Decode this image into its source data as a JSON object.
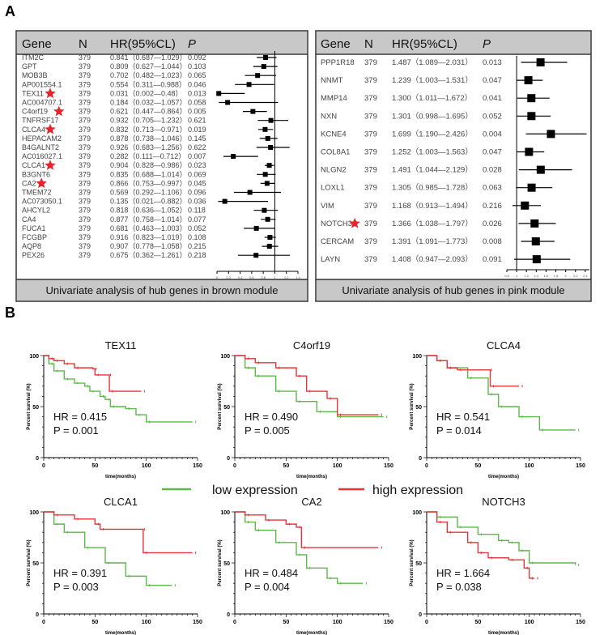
{
  "panel_labels": {
    "a": "A",
    "b": "B"
  },
  "chart_data": [
    {
      "type": "forest",
      "title": "Univariate analysis of hub genes in brown module",
      "headers": [
        "Gene",
        "N",
        "HR(95%CL)",
        "P"
      ],
      "xlim": [
        0,
        1.4
      ],
      "xticks": [
        0,
        0.2,
        0.4,
        0.6,
        0.8,
        1,
        1.2,
        1.4
      ],
      "reference": 1,
      "rows": [
        {
          "gene": "ITM2C",
          "n": "379",
          "hr": 0.841,
          "lo": 0.687,
          "hi": 1.029,
          "ci": "0.841（0.687—1.029）",
          "p": "0.092",
          "star": false
        },
        {
          "gene": "GPT",
          "n": "379",
          "hr": 0.809,
          "lo": 0.627,
          "hi": 1.044,
          "ci": "0.809（0.627—1.044）",
          "p": "0.103",
          "star": false
        },
        {
          "gene": "MOB3B",
          "n": "379",
          "hr": 0.702,
          "lo": 0.482,
          "hi": 1.023,
          "ci": "0.702（0.482—1.023）",
          "p": "0.065",
          "star": false
        },
        {
          "gene": "AP001554.1",
          "n": "379",
          "hr": 0.554,
          "lo": 0.311,
          "hi": 0.988,
          "ci": "0.554（0.311—0.988）",
          "p": "0.046",
          "star": false
        },
        {
          "gene": "TEX11",
          "n": "379",
          "hr": 0.031,
          "lo": 0.002,
          "hi": 0.48,
          "ci": "0.031（0.002—0.48）",
          "p": "0.013",
          "star": true
        },
        {
          "gene": "AC004707.1",
          "n": "379",
          "hr": 0.184,
          "lo": 0.032,
          "hi": 1.057,
          "ci": "0.184（0.032—1.057）",
          "p": "0.058",
          "star": false
        },
        {
          "gene": "C4orf19",
          "n": "379",
          "hr": 0.621,
          "lo": 0.447,
          "hi": 0.864,
          "ci": "0.621（0.447—0.864）",
          "p": "0.005",
          "star": true
        },
        {
          "gene": "TNFRSF17",
          "n": "379",
          "hr": 0.932,
          "lo": 0.705,
          "hi": 1.232,
          "ci": "0.932（0.705—1.232）",
          "p": "0.621",
          "star": false
        },
        {
          "gene": "CLCA4",
          "n": "379",
          "hr": 0.832,
          "lo": 0.713,
          "hi": 0.971,
          "ci": "0.832（0.713—0.971）",
          "p": "0.019",
          "star": true
        },
        {
          "gene": "HEPACAM2",
          "n": "379",
          "hr": 0.878,
          "lo": 0.738,
          "hi": 1.046,
          "ci": "0.878（0.738—1.046）",
          "p": "0.145",
          "star": false
        },
        {
          "gene": "B4GALNT2",
          "n": "379",
          "hr": 0.926,
          "lo": 0.683,
          "hi": 1.256,
          "ci": "0.926（0.683—1.256）",
          "p": "0.622",
          "star": false
        },
        {
          "gene": "AC016027.1",
          "n": "379",
          "hr": 0.282,
          "lo": 0.111,
          "hi": 0.712,
          "ci": "0.282（0.111—0.712）",
          "p": "0.007",
          "star": false
        },
        {
          "gene": "CLCA1",
          "n": "379",
          "hr": 0.904,
          "lo": 0.828,
          "hi": 0.986,
          "ci": "0.904（0.828—0.986）",
          "p": "0.023",
          "star": true
        },
        {
          "gene": "B3GNT6",
          "n": "379",
          "hr": 0.835,
          "lo": 0.688,
          "hi": 1.014,
          "ci": "0.835（0.688—1.014）",
          "p": "0.069",
          "star": false
        },
        {
          "gene": "CA2",
          "n": "379",
          "hr": 0.866,
          "lo": 0.753,
          "hi": 0.997,
          "ci": "0.866（0.753—0.997）",
          "p": "0.045",
          "star": true
        },
        {
          "gene": "TMEM72",
          "n": "379",
          "hr": 0.569,
          "lo": 0.292,
          "hi": 1.106,
          "ci": "0.569（0.292—1.106）",
          "p": "0.096",
          "star": false
        },
        {
          "gene": "AC073050.1",
          "n": "379",
          "hr": 0.135,
          "lo": 0.021,
          "hi": 0.882,
          "ci": "0.135（0.021—0.882）",
          "p": "0.036",
          "star": false
        },
        {
          "gene": "AHCYL2",
          "n": "379",
          "hr": 0.818,
          "lo": 0.636,
          "hi": 1.052,
          "ci": "0.818（0.636—1.052）",
          "p": "0.118",
          "star": false
        },
        {
          "gene": "CA4",
          "n": "379",
          "hr": 0.877,
          "lo": 0.758,
          "hi": 1.014,
          "ci": "0.877（0.758—1.014）",
          "p": "0.077",
          "star": false
        },
        {
          "gene": "FUCA1",
          "n": "379",
          "hr": 0.681,
          "lo": 0.463,
          "hi": 1.003,
          "ci": "0.681（0.463—1.003）",
          "p": "0.052",
          "star": false
        },
        {
          "gene": "FCGBP",
          "n": "379",
          "hr": 0.916,
          "lo": 0.823,
          "hi": 1.019,
          "ci": "0.916（0.823—1.019）",
          "p": "0.108",
          "star": false
        },
        {
          "gene": "AQP8",
          "n": "379",
          "hr": 0.907,
          "lo": 0.778,
          "hi": 1.058,
          "ci": "0.907（0.778—1.058）",
          "p": "0.215",
          "star": false
        },
        {
          "gene": "PEX26",
          "n": "379",
          "hr": 0.675,
          "lo": 0.362,
          "hi": 1.261,
          "ci": "0.675（0.362—1.261）",
          "p": "0.218",
          "star": false
        }
      ]
    },
    {
      "type": "forest",
      "title": "Univariate analysis of hub genes in pink module",
      "headers": [
        "Gene",
        "N",
        "HR(95%CL)",
        "P"
      ],
      "xlim": [
        0.8,
        2.6
      ],
      "xticks": [
        0.8,
        1,
        1.2,
        1.4,
        1.6,
        1.8,
        2,
        2.2,
        2.4
      ],
      "reference": 1,
      "rows": [
        {
          "gene": "PPP1R18",
          "n": "379",
          "hr": 1.487,
          "lo": 1.089,
          "hi": 2.031,
          "ci": "1.487（1.089—2.031）",
          "p": "0.013",
          "star": false
        },
        {
          "gene": "NNMT",
          "n": "379",
          "hr": 1.239,
          "lo": 1.003,
          "hi": 1.531,
          "ci": "1.239（1.003—1.531）",
          "p": "0.047",
          "star": false
        },
        {
          "gene": "MMP14",
          "n": "379",
          "hr": 1.3,
          "lo": 1.011,
          "hi": 1.672,
          "ci": "1.300（1.011—1.672）",
          "p": "0.041",
          "star": false
        },
        {
          "gene": "NXN",
          "n": "379",
          "hr": 1.301,
          "lo": 0.998,
          "hi": 1.695,
          "ci": "1.301（0.998—1.695）",
          "p": "0.052",
          "star": false
        },
        {
          "gene": "KCNE4",
          "n": "379",
          "hr": 1.699,
          "lo": 1.19,
          "hi": 2.426,
          "ci": "1.699（1.190—2.426）",
          "p": "0.004",
          "star": false
        },
        {
          "gene": "COL8A1",
          "n": "379",
          "hr": 1.252,
          "lo": 1.003,
          "hi": 1.563,
          "ci": "1.252（1.003—1.563）",
          "p": "0.047",
          "star": false
        },
        {
          "gene": "NLGN2",
          "n": "379",
          "hr": 1.491,
          "lo": 1.044,
          "hi": 2.129,
          "ci": "1.491（1.044—2.129）",
          "p": "0.028",
          "star": false
        },
        {
          "gene": "LOXL1",
          "n": "379",
          "hr": 1.305,
          "lo": 0.985,
          "hi": 1.728,
          "ci": "1.305（0.985—1.728）",
          "p": "0.063",
          "star": false
        },
        {
          "gene": "VIM",
          "n": "379",
          "hr": 1.168,
          "lo": 0.913,
          "hi": 1.494,
          "ci": "1.168（0.913—1.494）",
          "p": "0.216",
          "star": false
        },
        {
          "gene": "NOTCH3",
          "n": "379",
          "hr": 1.366,
          "lo": 1.038,
          "hi": 1.797,
          "ci": "1.366（1.038—1.797）",
          "p": "0.026",
          "star": true
        },
        {
          "gene": "CERCAM",
          "n": "379",
          "hr": 1.391,
          "lo": 1.091,
          "hi": 1.773,
          "ci": "1.391（1.091—1.773）",
          "p": "0.008",
          "star": false
        },
        {
          "gene": "LAYN",
          "n": "379",
          "hr": 1.408,
          "lo": 0.947,
          "hi": 2.093,
          "ci": "1.408（0.947—2.093）",
          "p": "0.091",
          "star": false
        }
      ]
    },
    {
      "type": "km",
      "xlabel": "time(months)",
      "ylabel": "Percent survival (%)",
      "xlim": [
        0,
        150
      ],
      "ylim": [
        0,
        100
      ],
      "xticks": [
        0,
        50,
        100,
        150
      ],
      "yticks": [
        0,
        50,
        100
      ],
      "legend": {
        "placement": "center",
        "items": [
          {
            "name": "low expression",
            "color": "#5db84a"
          },
          {
            "name": "high expression",
            "color": "#e8343a"
          }
        ]
      },
      "plots": [
        {
          "title": "TEX11",
          "hr": "HR = 0.415",
          "p": "P = 0.001",
          "high": [
            [
              0,
              100
            ],
            [
              5,
              97
            ],
            [
              10,
              95
            ],
            [
              20,
              92
            ],
            [
              30,
              88
            ],
            [
              48,
              87
            ],
            [
              50,
              81
            ],
            [
              62,
              81
            ],
            [
              64,
              65
            ],
            [
              95,
              65
            ]
          ],
          "low": [
            [
              0,
              100
            ],
            [
              5,
              92
            ],
            [
              10,
              85
            ],
            [
              20,
              77
            ],
            [
              30,
              73
            ],
            [
              40,
              70
            ],
            [
              45,
              65
            ],
            [
              55,
              60
            ],
            [
              60,
              57
            ],
            [
              65,
              50
            ],
            [
              80,
              48
            ],
            [
              90,
              42
            ],
            [
              100,
              35
            ],
            [
              145,
              35
            ]
          ]
        },
        {
          "title": "C4orf19",
          "hr": "HR = 0.490",
          "p": "P = 0.005",
          "high": [
            [
              0,
              100
            ],
            [
              10,
              97
            ],
            [
              20,
              93
            ],
            [
              40,
              88
            ],
            [
              60,
              80
            ],
            [
              70,
              65
            ],
            [
              90,
              58
            ],
            [
              100,
              42
            ],
            [
              140,
              42
            ]
          ],
          "low": [
            [
              0,
              100
            ],
            [
              10,
              88
            ],
            [
              20,
              80
            ],
            [
              40,
              65
            ],
            [
              60,
              55
            ],
            [
              80,
              45
            ],
            [
              100,
              40
            ],
            [
              145,
              40
            ]
          ]
        },
        {
          "title": "CLCA4",
          "hr": "HR = 0.541",
          "p": "P = 0.014",
          "high": [
            [
              0,
              100
            ],
            [
              10,
              95
            ],
            [
              20,
              88
            ],
            [
              30,
              86
            ],
            [
              60,
              86
            ],
            [
              62,
              70
            ],
            [
              90,
              70
            ]
          ],
          "low": [
            [
              0,
              100
            ],
            [
              10,
              95
            ],
            [
              20,
              88
            ],
            [
              40,
              78
            ],
            [
              60,
              62
            ],
            [
              70,
              50
            ],
            [
              90,
              40
            ],
            [
              110,
              27
            ],
            [
              145,
              27
            ]
          ]
        },
        {
          "title": "CLCA1",
          "hr": "HR = 0.391",
          "p": "P = 0.003",
          "high": [
            [
              0,
              100
            ],
            [
              10,
              97
            ],
            [
              30,
              93
            ],
            [
              50,
              88
            ],
            [
              55,
              83
            ],
            [
              95,
              83
            ],
            [
              97,
              60
            ],
            [
              145,
              60
            ]
          ],
          "low": [
            [
              0,
              100
            ],
            [
              10,
              88
            ],
            [
              20,
              80
            ],
            [
              40,
              65
            ],
            [
              60,
              50
            ],
            [
              80,
              37
            ],
            [
              100,
              28
            ],
            [
              125,
              28
            ]
          ]
        },
        {
          "title": "CA2",
          "hr": "HR = 0.484",
          "p": "P = 0.004",
          "high": [
            [
              0,
              100
            ],
            [
              10,
              97
            ],
            [
              30,
              92
            ],
            [
              50,
              88
            ],
            [
              60,
              85
            ],
            [
              65,
              65
            ],
            [
              140,
              65
            ]
          ],
          "low": [
            [
              0,
              100
            ],
            [
              10,
              90
            ],
            [
              20,
              82
            ],
            [
              40,
              70
            ],
            [
              60,
              58
            ],
            [
              70,
              45
            ],
            [
              90,
              35
            ],
            [
              100,
              30
            ],
            [
              125,
              30
            ]
          ]
        },
        {
          "title": "NOTCH3",
          "hr": "HR = 1.664",
          "p": "P = 0.038",
          "high": [
            [
              0,
              100
            ],
            [
              10,
              90
            ],
            [
              20,
              80
            ],
            [
              40,
              70
            ],
            [
              50,
              60
            ],
            [
              60,
              55
            ],
            [
              80,
              53
            ],
            [
              95,
              45
            ],
            [
              100,
              35
            ],
            [
              105,
              35
            ]
          ],
          "low": [
            [
              0,
              100
            ],
            [
              10,
              95
            ],
            [
              30,
              85
            ],
            [
              50,
              78
            ],
            [
              70,
              72
            ],
            [
              80,
              70
            ],
            [
              90,
              62
            ],
            [
              100,
              50
            ],
            [
              145,
              48
            ]
          ]
        }
      ]
    }
  ]
}
